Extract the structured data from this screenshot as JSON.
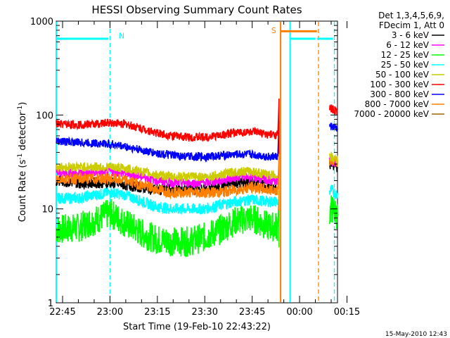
{
  "chart_data": {
    "type": "line",
    "title": "HESSI Observing Summary Count Rates",
    "xlabel": "Start Time (19-Feb-10 22:43:22)",
    "ylabel_parts": [
      "Count Rate (s",
      "-1",
      " detector",
      "-1",
      ")"
    ],
    "yscale": "log",
    "ylim": [
      1,
      1000
    ],
    "y_ticks": [
      {
        "value": 1,
        "label": "1"
      },
      {
        "value": 10,
        "label": "10"
      },
      {
        "value": 100,
        "label": "100"
      },
      {
        "value": 1000,
        "label": "1000"
      }
    ],
    "x_range_min": [
      -2,
      87
    ],
    "x_ticks": [
      {
        "value": 0,
        "label": "22:45"
      },
      {
        "value": 15,
        "label": "23:00"
      },
      {
        "value": 30,
        "label": "23:15"
      },
      {
        "value": 45,
        "label": "23:30"
      },
      {
        "value": 60,
        "label": "23:45"
      },
      {
        "value": 75,
        "label": "00:00"
      },
      {
        "value": 90,
        "label": "00:15"
      }
    ],
    "legend_header": [
      "Det 1,3,4,5,6,9,",
      "FDecim 1, Att 0"
    ],
    "legend_placement": "right",
    "series": [
      {
        "name": "3 - 6 keV",
        "color": "#000000",
        "segments": [
          {
            "x": [
              -2,
              5,
              10,
              15,
              20,
              25,
              30,
              35,
              40,
              45,
              50,
              55,
              60,
              65,
              68
            ],
            "y": [
              20,
              19,
              19,
              19,
              18,
              17,
              16,
              16,
              16,
              16,
              17,
              19,
              19,
              17,
              17
            ]
          },
          {
            "x": [
              84.5,
              85,
              86,
              87
            ],
            "y": [
              30,
              31,
              29,
              28
            ]
          }
        ]
      },
      {
        "name": "6 - 12 keV",
        "color": "#ff00ff",
        "segments": [
          {
            "x": [
              -2,
              5,
              10,
              15,
              20,
              25,
              30,
              35,
              40,
              45,
              50,
              55,
              60,
              65,
              68
            ],
            "y": [
              24,
              24,
              24,
              25,
              24,
              22,
              20,
              19,
              19,
              19,
              20,
              22,
              22,
              20,
              20
            ]
          },
          {
            "x": [
              84.5,
              85,
              86,
              87
            ],
            "y": [
              32,
              33,
              31,
              30
            ]
          }
        ]
      },
      {
        "name": "12 - 25 keV",
        "color": "#00ff00",
        "segments": [
          {
            "x": [
              -2,
              5,
              10,
              15,
              20,
              25,
              30,
              35,
              40,
              45,
              50,
              55,
              60,
              65,
              68
            ],
            "y": [
              6,
              6.3,
              7.5,
              9,
              7,
              5.5,
              4.7,
              4.5,
              4.5,
              5,
              6,
              7.5,
              8,
              6.5,
              6.5
            ]
          },
          {
            "x": [
              84.5,
              85,
              86,
              87
            ],
            "y": [
              9,
              10,
              9.5,
              8.5
            ]
          }
        ]
      },
      {
        "name": "25 - 50 keV",
        "color": "#00ffff",
        "segments": [
          {
            "x": [
              -2,
              5,
              10,
              15,
              20,
              25,
              30,
              35,
              40,
              45,
              50,
              55,
              60,
              65,
              68
            ],
            "y": [
              13,
              13,
              14,
              15,
              14,
              12,
              10.5,
              10,
              10,
              10,
              11,
              12,
              12.5,
              12,
              12
            ]
          },
          {
            "x": [
              84.5,
              85,
              86,
              87
            ],
            "y": [
              15,
              16,
              15,
              14
            ]
          }
        ]
      },
      {
        "name": "50 - 100 keV",
        "color": "#cccc00",
        "segments": [
          {
            "x": [
              -2,
              5,
              10,
              15,
              20,
              25,
              30,
              35,
              40,
              45,
              50,
              55,
              60,
              65,
              68
            ],
            "y": [
              28,
              28,
              28,
              28,
              27,
              25,
              23,
              22,
              22,
              22,
              23,
              25,
              25,
              23,
              23
            ]
          },
          {
            "x": [
              84.5,
              85,
              86,
              87
            ],
            "y": [
              35,
              36,
              34,
              33
            ]
          }
        ]
      },
      {
        "name": "100 - 300 keV",
        "color": "#ff0000",
        "segments": [
          {
            "x": [
              -2,
              5,
              10,
              15,
              20,
              25,
              30,
              35,
              40,
              45,
              50,
              55,
              60,
              65,
              68
            ],
            "y": [
              80,
              79,
              80,
              83,
              80,
              72,
              64,
              60,
              58,
              58,
              61,
              65,
              66,
              62,
              62
            ]
          },
          {
            "x": [
              84.5,
              85,
              86,
              87
            ],
            "y": [
              115,
              118,
              112,
              108
            ]
          }
        ]
      },
      {
        "name": "300 - 800 keV",
        "color": "#0000ff",
        "segments": [
          {
            "x": [
              -2,
              5,
              10,
              15,
              20,
              25,
              30,
              35,
              40,
              45,
              50,
              55,
              60,
              65,
              68
            ],
            "y": [
              53,
              51,
              50,
              49,
              46,
              42,
              39,
              37,
              36,
              36,
              37,
              38,
              38,
              36,
              36
            ]
          },
          {
            "x": [
              84.5,
              85,
              86,
              87
            ],
            "y": [
              75,
              76,
              73,
              71
            ]
          }
        ]
      },
      {
        "name": "800 - 7000 keV",
        "color": "#ff8000",
        "segments": [
          {
            "x": [
              -2,
              5,
              10,
              15,
              20,
              25,
              30,
              35,
              40,
              45,
              50,
              55,
              60,
              65,
              68
            ],
            "y": [
              21,
              21,
              21,
              21,
              20,
              18,
              16,
              15,
              15,
              15,
              15,
              16,
              17,
              16,
              16
            ]
          },
          {
            "x": [
              84.5,
              85,
              86,
              87
            ],
            "y": [
              33,
              34,
              32,
              31
            ]
          }
        ]
      },
      {
        "name": "7000 - 20000 keV",
        "color": "#996600",
        "segments": []
      }
    ],
    "flare_spike": {
      "x": 68.5,
      "y": 150
    },
    "annotations": [
      {
        "label": "N",
        "color": "#00ffff",
        "x": 16,
        "y": 700
      },
      {
        "label": "S",
        "color": "#ff8000",
        "x": 68.5,
        "y": 800
      }
    ],
    "bars": [
      {
        "color": "#00ffff",
        "x": [
          -2,
          14.5
        ],
        "y": 650
      },
      {
        "color": "#ff8000",
        "x": [
          69,
          80.5
        ],
        "y": 780
      },
      {
        "color": "#00ffff",
        "x": [
          80.5,
          85.5
        ],
        "y": 650
      },
      {
        "color": "#00ffff",
        "x": [
          72,
          80
        ],
        "y": 650
      }
    ],
    "vlines": [
      {
        "x": -2,
        "color": "#00ffff",
        "style": "solid"
      },
      {
        "x": 15,
        "color": "#00ffff",
        "style": "dashed"
      },
      {
        "x": 69,
        "color": "#ff8000",
        "style": "solid"
      },
      {
        "x": 72,
        "color": "#00ffff",
        "style": "solid"
      },
      {
        "x": 81,
        "color": "#ff8000",
        "style": "dashed"
      },
      {
        "x": 86,
        "color": "#00ffff",
        "style": "dashed"
      }
    ]
  },
  "footer": {
    "timestamp": "15-May-2010 12:43"
  }
}
